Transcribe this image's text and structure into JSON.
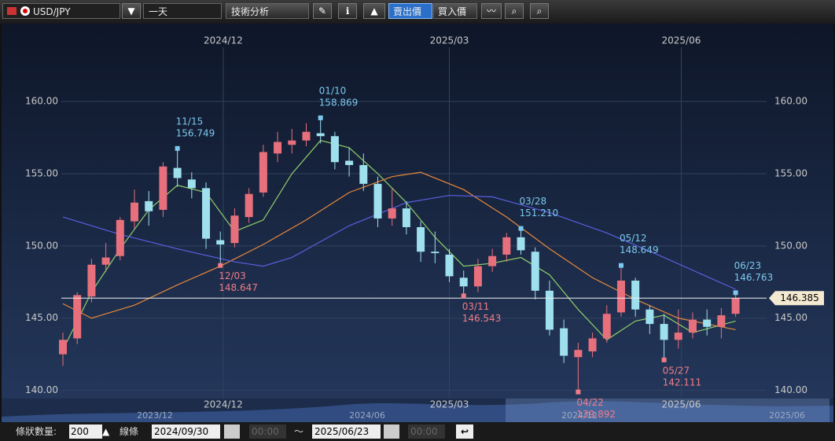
{
  "toolbar": {
    "symbol": "USD/JPY",
    "period": "一天",
    "analysis": "技術分析",
    "sell": "賣出價",
    "buy": "買入價"
  },
  "chart_data": {
    "type": "candlestick",
    "xlim": [
      0,
      49
    ],
    "xticks": [
      {
        "value": 11.2,
        "label": "2024/12"
      },
      {
        "value": 27,
        "label": "2025/03"
      },
      {
        "value": 43.2,
        "label": "2025/06"
      }
    ],
    "ylim": [
      139,
      162.4
    ],
    "yticks": [
      {
        "value": 140,
        "label": "140.00"
      },
      {
        "value": 145,
        "label": "145.00"
      },
      {
        "value": 150,
        "label": "150.00"
      },
      {
        "value": 155,
        "label": "155.00"
      },
      {
        "value": 160,
        "label": "160.00"
      }
    ],
    "grid": true,
    "up_color": "#e8707c",
    "down_color": "#9ee0ee",
    "open": [
      142.5,
      143.6,
      146.5,
      148.7,
      149.3,
      151.7,
      153.1,
      152.5,
      155.4,
      154.6,
      154.0,
      150.4,
      150.2,
      152.0,
      153.7,
      156.4,
      157.0,
      157.3,
      157.8,
      157.6,
      155.9,
      155.6,
      154.3,
      151.9,
      152.6,
      151.3,
      149.6,
      149.4,
      147.8,
      147.2,
      148.6,
      149.4,
      150.6,
      149.6,
      146.9,
      144.3,
      142.3,
      142.7,
      143.6,
      145.4,
      147.6,
      145.6,
      144.6,
      143.5,
      144.0,
      144.9,
      144.4,
      145.3
    ],
    "high": [
      144.0,
      146.8,
      149.1,
      150.2,
      152.0,
      153.9,
      153.8,
      155.8,
      156.749,
      155.1,
      154.4,
      151.0,
      152.6,
      154.0,
      157.0,
      157.9,
      158.1,
      158.5,
      158.869,
      157.9,
      156.8,
      156.4,
      154.8,
      154.0,
      153.1,
      151.7,
      151.0,
      149.8,
      148.3,
      149.1,
      149.8,
      150.9,
      151.21,
      149.9,
      147.6,
      144.9,
      143.3,
      144.0,
      145.9,
      148.649,
      147.8,
      145.9,
      145.3,
      145.6,
      145.4,
      145.6,
      145.7,
      146.763
    ],
    "low": [
      141.7,
      143.2,
      146.1,
      148.2,
      149.0,
      151.2,
      151.4,
      152.0,
      154.1,
      153.3,
      149.8,
      148.647,
      149.9,
      151.6,
      153.4,
      155.8,
      156.4,
      156.9,
      157.1,
      155.3,
      154.8,
      153.8,
      151.3,
      151.4,
      150.8,
      148.9,
      148.8,
      147.5,
      146.543,
      146.8,
      148.2,
      148.9,
      149.4,
      146.3,
      143.8,
      141.9,
      139.892,
      142.3,
      143.3,
      145.1,
      145.1,
      143.9,
      142.111,
      142.9,
      143.6,
      143.8,
      143.6,
      145.1
    ],
    "close": [
      143.5,
      146.6,
      148.7,
      149.2,
      151.8,
      153.0,
      152.4,
      155.5,
      154.7,
      154.0,
      150.5,
      150.1,
      152.1,
      153.6,
      156.5,
      157.2,
      157.3,
      157.9,
      157.6,
      155.8,
      155.6,
      154.3,
      151.9,
      152.6,
      151.3,
      149.6,
      149.5,
      147.9,
      147.2,
      148.6,
      149.3,
      150.6,
      149.7,
      146.9,
      144.2,
      142.4,
      142.8,
      143.6,
      145.3,
      147.6,
      145.6,
      144.6,
      143.5,
      144.0,
      144.9,
      144.4,
      145.2,
      146.385
    ],
    "moving_averages": [
      {
        "color": "#8fcf6a",
        "x": [
          0,
          2,
          4,
          6,
          8,
          10,
          12,
          14,
          16,
          18,
          20,
          22,
          24,
          26,
          28,
          30,
          32,
          34,
          36,
          38,
          40,
          42,
          44,
          47
        ],
        "values": [
          142.8,
          146.8,
          149.8,
          152.5,
          154.2,
          153.7,
          151.0,
          151.8,
          155.0,
          157.3,
          156.8,
          155.0,
          153.0,
          150.6,
          148.6,
          148.8,
          149.2,
          148.0,
          145.6,
          143.5,
          144.8,
          145.2,
          144.0,
          144.8
        ]
      },
      {
        "color": "#e8883a",
        "x": [
          0,
          2,
          5,
          8,
          11,
          14,
          17,
          20,
          23,
          25,
          28,
          31,
          34,
          37,
          40,
          43,
          47
        ],
        "values": [
          146.0,
          145.0,
          145.9,
          147.3,
          148.6,
          150.1,
          151.8,
          153.7,
          154.8,
          155.1,
          153.9,
          152.0,
          149.8,
          147.8,
          146.3,
          145.0,
          144.2
        ]
      },
      {
        "color": "#5a5fe0",
        "x": [
          0,
          4,
          8,
          12,
          14,
          16,
          20,
          24,
          27,
          30,
          34,
          38,
          42,
          47
        ],
        "values": [
          152.0,
          150.8,
          149.8,
          148.9,
          148.6,
          149.2,
          151.4,
          153.0,
          153.5,
          153.4,
          152.3,
          150.9,
          149.2,
          147.0
        ]
      }
    ],
    "current_price": 146.385,
    "annotations": [
      {
        "date": "11/15",
        "value": 156.749,
        "x": 8,
        "kind": "high"
      },
      {
        "date": "12/03",
        "value": 148.647,
        "x": 11,
        "kind": "low"
      },
      {
        "date": "01/10",
        "value": 158.869,
        "x": 18,
        "kind": "high"
      },
      {
        "date": "03/11",
        "value": 146.543,
        "x": 28,
        "kind": "low"
      },
      {
        "date": "03/28",
        "value": 151.21,
        "value_label": "151.210",
        "x": 32,
        "kind": "high"
      },
      {
        "date": "04/22",
        "value": 139.892,
        "x": 36,
        "kind": "low"
      },
      {
        "date": "05/12",
        "value": 148.649,
        "x": 39,
        "kind": "high"
      },
      {
        "date": "05/27",
        "value": 142.111,
        "x": 42,
        "kind": "low"
      },
      {
        "date": "06/23",
        "value": 146.763,
        "x": 47,
        "kind": "high"
      }
    ]
  },
  "navigator": {
    "labels": [
      "2023/12",
      "2024/06",
      "2024/12",
      "2025/06"
    ]
  },
  "bottom": {
    "bar_count_label": "條狀數量:",
    "bar_count": 200,
    "line_label": "線條",
    "start_date": "2024/09/30",
    "start_time": "00:00",
    "tilde": "～",
    "end_date": "2025/06/23",
    "end_time": "00:00"
  }
}
